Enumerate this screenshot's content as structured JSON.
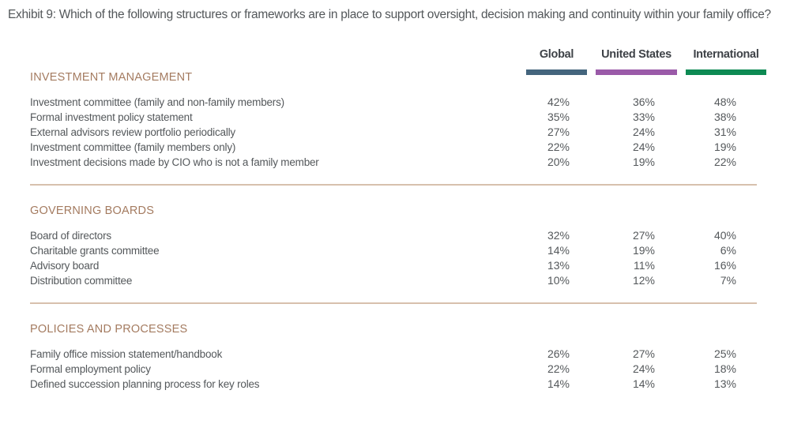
{
  "title": "Exhibit 9: Which of the following structures or frameworks are in place to support oversight, decision making and continuity within your family office?",
  "header": {
    "columns": [
      {
        "label": "Global",
        "color": "#44657d"
      },
      {
        "label": "United States",
        "color": "#9a5aa8"
      },
      {
        "label": "International",
        "color": "#0d8a53"
      }
    ]
  },
  "sections": [
    {
      "heading": "INVESTMENT MANAGEMENT",
      "rows": [
        {
          "label": "Investment committee (family and non-family members)",
          "values": [
            "42%",
            "36%",
            "48%"
          ]
        },
        {
          "label": "Formal investment policy statement",
          "values": [
            "35%",
            "33%",
            "38%"
          ]
        },
        {
          "label": "External advisors review portfolio periodically",
          "values": [
            "27%",
            "24%",
            "31%"
          ]
        },
        {
          "label": "Investment committee (family members only)",
          "values": [
            "22%",
            "24%",
            "19%"
          ]
        },
        {
          "label": "Investment decisions made by CIO who is not a family member",
          "values": [
            "20%",
            "19%",
            "22%"
          ]
        }
      ]
    },
    {
      "heading": "GOVERNING BOARDS",
      "rows": [
        {
          "label": "Board of directors",
          "values": [
            "32%",
            "27%",
            "40%"
          ]
        },
        {
          "label": "Charitable grants committee",
          "values": [
            "14%",
            "19%",
            "6%"
          ]
        },
        {
          "label": "Advisory board",
          "values": [
            "13%",
            "11%",
            "16%"
          ]
        },
        {
          "label": "Distribution committee",
          "values": [
            "10%",
            "12%",
            "7%"
          ]
        }
      ]
    },
    {
      "heading": "POLICIES AND PROCESSES",
      "rows": [
        {
          "label": "Family office mission statement/handbook",
          "values": [
            "26%",
            "27%",
            "25%"
          ]
        },
        {
          "label": "Formal employment policy",
          "values": [
            "22%",
            "24%",
            "18%"
          ]
        },
        {
          "label": "Defined succession planning process for key roles",
          "values": [
            "14%",
            "14%",
            "13%"
          ]
        }
      ]
    }
  ],
  "chart_data": {
    "type": "table",
    "title": "Exhibit 9: Which of the following structures or frameworks are in place to support oversight, decision making and continuity within your family office?",
    "unit": "%",
    "columns": [
      "Global",
      "United States",
      "International"
    ],
    "column_colors": [
      "#44657d",
      "#9a5aa8",
      "#0d8a53"
    ],
    "sections": [
      {
        "name": "INVESTMENT MANAGEMENT",
        "rows": [
          {
            "label": "Investment committee (family and non-family members)",
            "values": [
              42,
              36,
              48
            ]
          },
          {
            "label": "Formal investment policy statement",
            "values": [
              35,
              33,
              38
            ]
          },
          {
            "label": "External advisors review portfolio periodically",
            "values": [
              27,
              24,
              31
            ]
          },
          {
            "label": "Investment committee (family members only)",
            "values": [
              22,
              24,
              19
            ]
          },
          {
            "label": "Investment decisions made by CIO who is not a family member",
            "values": [
              20,
              19,
              22
            ]
          }
        ]
      },
      {
        "name": "GOVERNING BOARDS",
        "rows": [
          {
            "label": "Board of directors",
            "values": [
              32,
              27,
              40
            ]
          },
          {
            "label": "Charitable grants committee",
            "values": [
              14,
              19,
              6
            ]
          },
          {
            "label": "Advisory board",
            "values": [
              13,
              11,
              16
            ]
          },
          {
            "label": "Distribution committee",
            "values": [
              10,
              12,
              7
            ]
          }
        ]
      },
      {
        "name": "POLICIES AND PROCESSES",
        "rows": [
          {
            "label": "Family office mission statement/handbook",
            "values": [
              26,
              27,
              25
            ]
          },
          {
            "label": "Formal employment policy",
            "values": [
              22,
              24,
              18
            ]
          },
          {
            "label": "Defined succession planning process for key roles",
            "values": [
              14,
              14,
              13
            ]
          }
        ]
      }
    ]
  }
}
